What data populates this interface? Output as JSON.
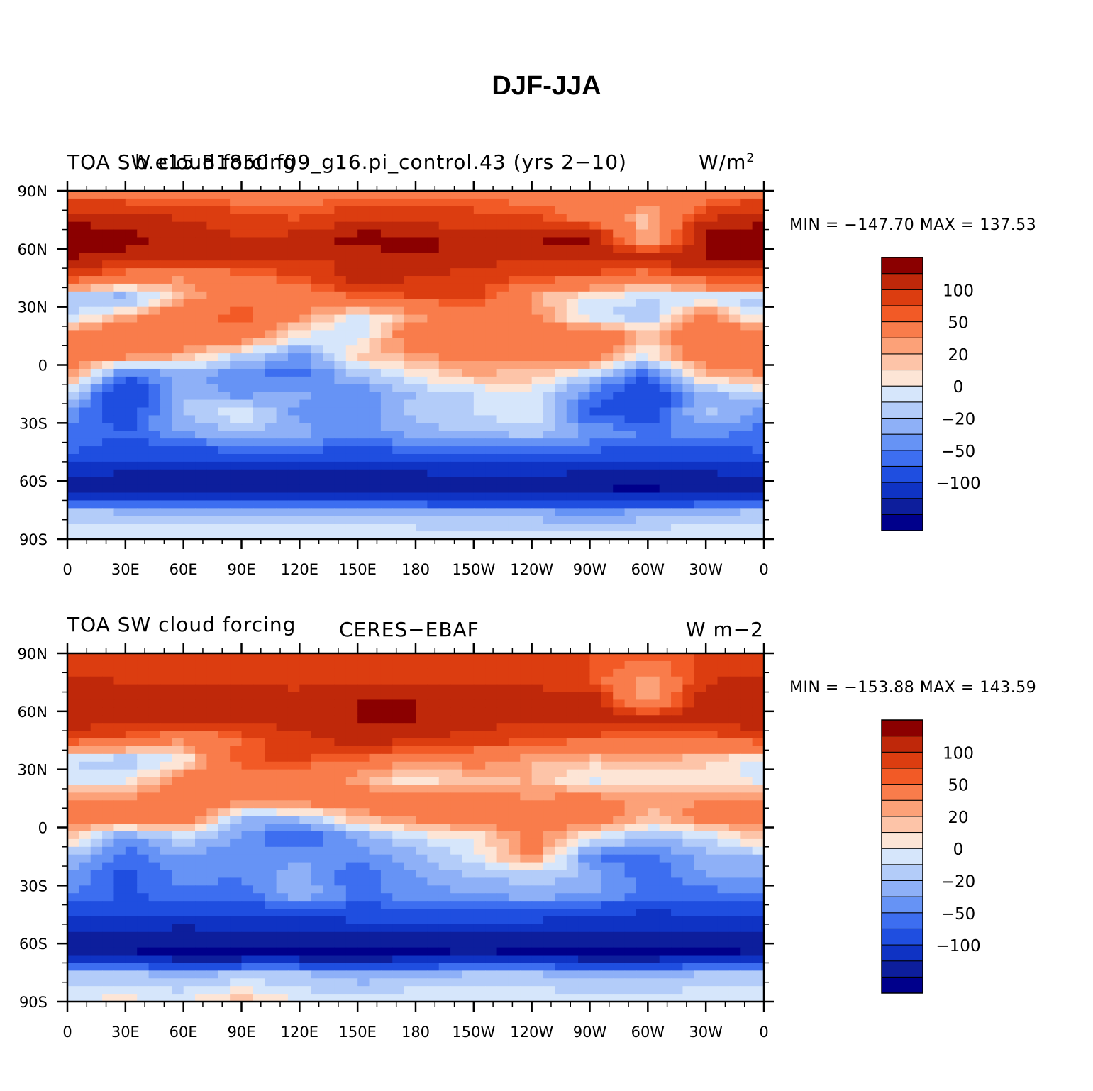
{
  "figure": {
    "title": "DJF-JJA"
  },
  "axes": {
    "lat_labels": [
      "90N",
      "60N",
      "30N",
      "0",
      "30S",
      "60S",
      "90S"
    ],
    "lon_labels": [
      "0",
      "30E",
      "60E",
      "90E",
      "120E",
      "150E",
      "180",
      "150W",
      "120W",
      "90W",
      "60W",
      "30W",
      "0"
    ]
  },
  "colorbar": {
    "levels": [
      -150,
      -120,
      -100,
      -80,
      -60,
      -50,
      -40,
      -30,
      -20,
      -10,
      0,
      10,
      20,
      30,
      40,
      50,
      60,
      80,
      100,
      120,
      150
    ],
    "colors": [
      "#00008b",
      "#0d1e9c",
      "#0f33c4",
      "#1f4ee0",
      "#3d6ef0",
      "#6693f5",
      "#8eb0f7",
      "#b3ccf9",
      "#d6e6fb",
      "#fde5d6",
      "#fdc4a8",
      "#fca178",
      "#f97c4b",
      "#f25a26",
      "#dc3d10",
      "#bf280a",
      "#8b0000"
    ],
    "labels": [
      "100",
      "50",
      "20",
      "0",
      "−20",
      "−50",
      "−100"
    ]
  },
  "panels": [
    {
      "left_title": "TOA SW cloud forcing",
      "center_title": "b.e15.B1850.f09_g16.pi_control.43 (yrs 2−10)",
      "units_base": "W/m",
      "units_sup": "2",
      "units_full": "",
      "min_max": "MIN = −147.70  MAX = 137.53"
    },
    {
      "left_title": "TOA SW cloud forcing",
      "center_title": "CERES−EBAF",
      "units_base": "",
      "units_sup": "",
      "units_full": "W m−2",
      "min_max": "MIN = −153.88  MAX = 143.59"
    }
  ],
  "chart_data": [
    {
      "type": "heatmap",
      "title": "b.e15.B1850.f09_g16.pi_control.43 (yrs 2−10)",
      "variable": "TOA SW cloud forcing",
      "units": "W/m2",
      "season": "DJF-JJA",
      "min": -147.7,
      "max": 137.53,
      "xlim": [
        0,
        360
      ],
      "ylim": [
        -90,
        90
      ],
      "lat_nodes": [
        -90,
        -75,
        -65,
        -55,
        -45,
        -35,
        -25,
        -15,
        -5,
        5,
        15,
        25,
        35,
        45,
        55,
        65,
        75,
        90
      ],
      "lon_nodes": [
        0,
        30,
        60,
        90,
        120,
        150,
        180,
        210,
        240,
        270,
        300,
        330,
        360
      ],
      "values": [
        [
          -8,
          -8,
          -8,
          -8,
          -8,
          -8,
          -8,
          -8,
          -8,
          -8,
          -8,
          -8,
          -8
        ],
        [
          -30,
          -32,
          -35,
          -35,
          -35,
          -35,
          -38,
          -40,
          -40,
          -45,
          -40,
          -35,
          -30
        ],
        [
          -110,
          -110,
          -115,
          -115,
          -110,
          -110,
          -110,
          -110,
          -115,
          -120,
          -125,
          -115,
          -110
        ],
        [
          -95,
          -100,
          -105,
          -100,
          -100,
          -100,
          -100,
          -95,
          -95,
          -100,
          -100,
          -100,
          -95
        ],
        [
          -60,
          -65,
          -70,
          -60,
          -60,
          -65,
          -60,
          -55,
          -55,
          -60,
          -70,
          -65,
          -60
        ],
        [
          -55,
          -60,
          -40,
          -30,
          -35,
          -45,
          -35,
          -30,
          -25,
          -40,
          -50,
          -45,
          -55
        ],
        [
          -45,
          -70,
          -30,
          -8,
          -45,
          -50,
          -25,
          -20,
          -10,
          -60,
          -70,
          -25,
          -45
        ],
        [
          -20,
          -80,
          -30,
          -45,
          -35,
          -50,
          -30,
          -20,
          -12,
          -50,
          -80,
          -35,
          -20
        ],
        [
          20,
          -60,
          -35,
          -50,
          -55,
          -30,
          -8,
          10,
          5,
          -20,
          -60,
          10,
          20
        ],
        [
          40,
          30,
          10,
          -20,
          -45,
          5,
          15,
          30,
          25,
          40,
          -10,
          40,
          40
        ],
        [
          35,
          50,
          40,
          40,
          -10,
          -20,
          40,
          30,
          20,
          50,
          5,
          40,
          35
        ],
        [
          -20,
          10,
          40,
          60,
          20,
          -15,
          10,
          40,
          30,
          -20,
          -30,
          30,
          -20
        ],
        [
          -30,
          -40,
          10,
          40,
          30,
          50,
          60,
          70,
          10,
          -10,
          -20,
          -20,
          -30
        ],
        [
          70,
          30,
          20,
          40,
          60,
          90,
          80,
          70,
          60,
          50,
          30,
          60,
          70
        ],
        [
          100,
          90,
          80,
          80,
          80,
          80,
          100,
          90,
          80,
          90,
          90,
          100,
          100
        ],
        [
          110,
          110,
          90,
          80,
          90,
          110,
          110,
          90,
          100,
          110,
          0,
          110,
          110
        ],
        [
          100,
          90,
          80,
          70,
          60,
          80,
          70,
          70,
          70,
          40,
          5,
          80,
          100
        ],
        [
          40,
          40,
          40,
          35,
          35,
          40,
          40,
          40,
          35,
          35,
          30,
          35,
          40
        ]
      ]
    },
    {
      "type": "heatmap",
      "title": "CERES−EBAF",
      "variable": "TOA SW cloud forcing",
      "units": "W m−2",
      "season": "DJF-JJA",
      "min": -153.88,
      "max": 143.59,
      "xlim": [
        0,
        360
      ],
      "ylim": [
        -90,
        90
      ],
      "lat_nodes": [
        -90,
        -75,
        -65,
        -55,
        -45,
        -35,
        -25,
        -15,
        -5,
        5,
        15,
        25,
        35,
        45,
        55,
        65,
        75,
        90
      ],
      "lon_nodes": [
        0,
        30,
        60,
        90,
        120,
        150,
        180,
        210,
        240,
        270,
        300,
        330,
        360
      ],
      "values": [
        [
          -12,
          -5,
          -12,
          8,
          -12,
          -12,
          -8,
          -12,
          -12,
          -12,
          -12,
          -12,
          -12
        ],
        [
          -25,
          -30,
          -35,
          -30,
          -30,
          -40,
          -35,
          -30,
          -30,
          -35,
          -35,
          -30,
          -25
        ],
        [
          -120,
          -120,
          -130,
          -130,
          -130,
          -130,
          -125,
          -120,
          -125,
          -130,
          -130,
          -125,
          -120
        ],
        [
          -100,
          -100,
          -110,
          -105,
          -100,
          -100,
          -100,
          -100,
          -100,
          -100,
          -105,
          -100,
          -100
        ],
        [
          -75,
          -80,
          -80,
          -75,
          -75,
          -70,
          -65,
          -70,
          -70,
          -75,
          -85,
          -80,
          -75
        ],
        [
          -50,
          -60,
          -55,
          -55,
          -30,
          -55,
          -45,
          -40,
          -35,
          -40,
          -50,
          -55,
          -50
        ],
        [
          -40,
          -65,
          -45,
          -50,
          -35,
          -60,
          -40,
          -30,
          -25,
          -30,
          -60,
          -40,
          -40
        ],
        [
          -30,
          -55,
          -40,
          -50,
          -40,
          -45,
          -35,
          -15,
          25,
          -50,
          -55,
          -35,
          -30
        ],
        [
          10,
          -45,
          -20,
          -40,
          -65,
          -40,
          -15,
          -10,
          30,
          -10,
          -30,
          -20,
          10
        ],
        [
          30,
          40,
          40,
          -30,
          -30,
          10,
          25,
          35,
          30,
          40,
          5,
          30,
          30
        ],
        [
          20,
          20,
          40,
          30,
          40,
          35,
          30,
          25,
          20,
          25,
          15,
          20,
          20
        ],
        [
          -15,
          -15,
          30,
          40,
          40,
          10,
          -10,
          5,
          10,
          -15,
          -10,
          -5,
          -15
        ],
        [
          -20,
          -30,
          -10,
          60,
          60,
          50,
          20,
          30,
          10,
          5,
          10,
          5,
          -20
        ],
        [
          60,
          50,
          20,
          50,
          70,
          90,
          80,
          70,
          60,
          50,
          40,
          40,
          60
        ],
        [
          90,
          90,
          80,
          80,
          90,
          100,
          100,
          90,
          80,
          90,
          90,
          95,
          90
        ],
        [
          100,
          100,
          90,
          90,
          90,
          100,
          100,
          90,
          90,
          100,
          10,
          100,
          100
        ],
        [
          90,
          80,
          80,
          80,
          75,
          80,
          80,
          80,
          80,
          60,
          10,
          80,
          90
        ],
        [
          60,
          60,
          60,
          60,
          60,
          60,
          60,
          60,
          60,
          60,
          60,
          60,
          60
        ]
      ]
    }
  ]
}
